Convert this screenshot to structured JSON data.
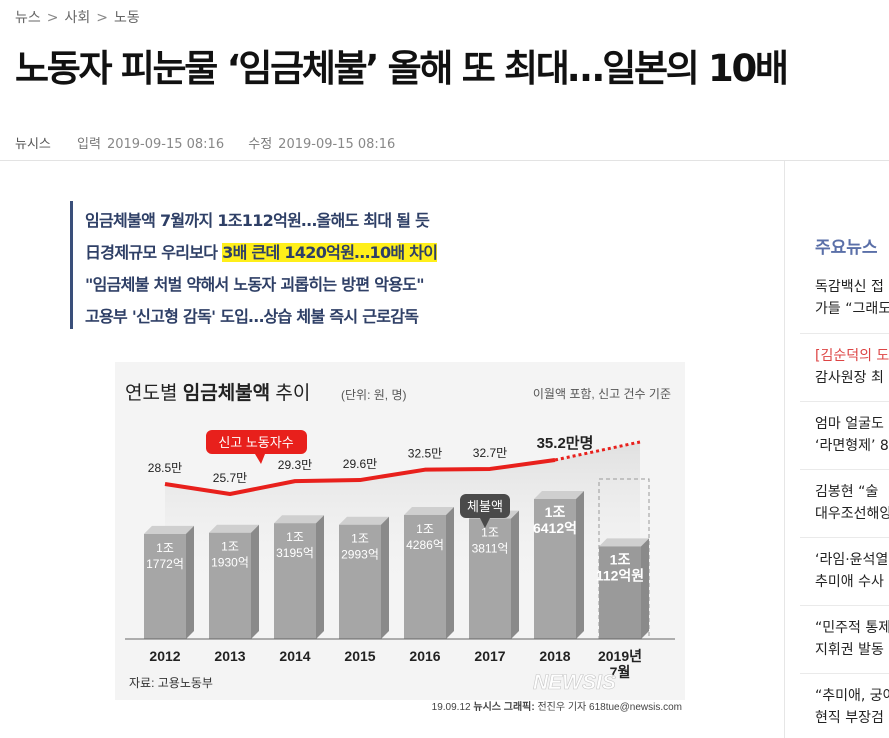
{
  "breadcrumb": {
    "items": [
      "뉴스",
      "사회",
      "노동"
    ],
    "sep": ">"
  },
  "article": {
    "title": "노동자 피눈물 ‘임금체불’ 올해 또 최대…일본의 10배",
    "source": "뉴시스",
    "input_label": "입력",
    "input_time": "2019-09-15 08:16",
    "edit_label": "수정",
    "edit_time": "2019-09-15 08:16"
  },
  "subtitles": {
    "line1": "임금체불액 7월까지 1조112억원…올해도 최대 될 듯",
    "line2_a": "日경제규모 우리보다 ",
    "line2_b": "3배 큰데 1420억원…10배 차이",
    "line3": "\"임금체불 처벌 약해서 노동자 괴롭히는 방편 악용도\"",
    "line4": "고용부 '신고형 감독' 도입…상습 체불 즉시 근로감독"
  },
  "chart_data": {
    "type": "bar",
    "title_a": "연도별 ",
    "title_b": "임금체불액",
    "title_c": " 추이",
    "units": "(단위: 원, 명)",
    "note": "이월액 포함, 신고 건수 기준",
    "categories": [
      "2012",
      "2013",
      "2014",
      "2015",
      "2016",
      "2017",
      "2018",
      "2019년 7월"
    ],
    "bar_series": {
      "name": "체불액",
      "values_eok": [
        11772,
        11930,
        13195,
        12993,
        14286,
        13811,
        16412,
        10112
      ],
      "labels": [
        [
          "1조",
          "1772억"
        ],
        [
          "1조",
          "1930억"
        ],
        [
          "1조",
          "3195억"
        ],
        [
          "1조",
          "2993억"
        ],
        [
          "1조",
          "4286억"
        ],
        [
          "1조",
          "3811억"
        ],
        [
          "1조",
          "6412억"
        ],
        [
          "1조",
          "112억원"
        ]
      ]
    },
    "line_series": {
      "name": "신고 노동자수",
      "values_man": [
        28.5,
        25.7,
        29.3,
        29.6,
        32.5,
        32.7,
        35.2
      ],
      "labels": [
        "28.5만",
        "25.7만",
        "29.3만",
        "29.6만",
        "32.5만",
        "32.7만",
        "35.2만명"
      ]
    },
    "source": "자료: 고용노동부",
    "credit_a": "19.09.12 ",
    "credit_b": "뉴시스 그래픽:",
    "credit_c": " 전진우 기자 618tue@newsis.com",
    "watermark": "NEWSIS",
    "colors": {
      "line": "#e8201c",
      "bar": "#a6a6a6",
      "bar_last": "#9a9a9a",
      "badge_line": "#e8201c",
      "badge_bar": "#4a4a4a"
    }
  },
  "sidebar": {
    "title": "주요뉴스",
    "items": [
      {
        "l1": "독감백신 접",
        "l2": "가들 “그래도"
      },
      {
        "l1": "[김순덕의 도",
        "l2": "감사원장 최"
      },
      {
        "l1": "엄마 얼굴도",
        "l2": "‘라면형제’ 8"
      },
      {
        "l1": "김봉현 “술 ",
        "l2": "대우조선해양"
      },
      {
        "l1": "‘라임·윤석열",
        "l2": "추미애 수사"
      },
      {
        "l1": "“민주적 통제",
        "l2": "지휘권 발동"
      },
      {
        "l1": "“추미애, 궁여",
        "l2": "현직 부장검"
      }
    ]
  }
}
